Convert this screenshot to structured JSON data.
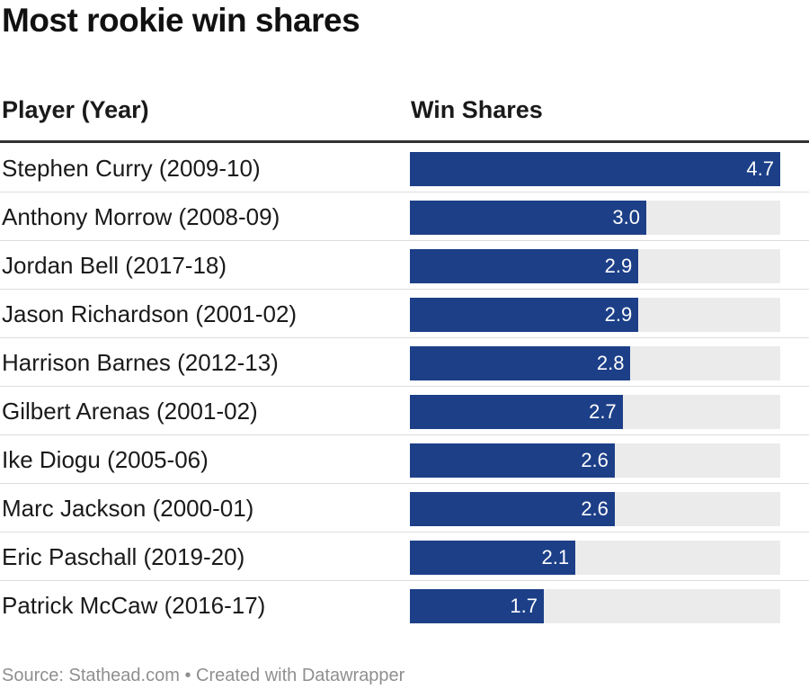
{
  "title": "Most rookie win shares",
  "columns": {
    "player": "Player (Year)",
    "value": "Win Shares"
  },
  "source": "Source: Stathead.com • Created with Datawrapper",
  "colors": {
    "bar": "#1c3f88",
    "track": "#ebebeb",
    "bar_label": "#ffffff"
  },
  "chart_data": {
    "type": "bar",
    "orientation": "horizontal",
    "title": "Most rookie win shares",
    "xlabel": "Win Shares",
    "ylabel": "Player (Year)",
    "xlim": [
      0,
      4.7
    ],
    "categories": [
      "Stephen Curry (2009-10)",
      "Anthony Morrow (2008-09)",
      "Jordan Bell (2017-18)",
      "Jason Richardson (2001-02)",
      "Harrison Barnes (2012-13)",
      "Gilbert Arenas (2001-02)",
      "Ike Diogu (2005-06)",
      "Marc Jackson (2000-01)",
      "Eric Paschall (2019-20)",
      "Patrick McCaw (2016-17)"
    ],
    "values": [
      4.7,
      3.0,
      2.9,
      2.9,
      2.8,
      2.7,
      2.6,
      2.6,
      2.1,
      1.7
    ],
    "value_labels": [
      "4.7",
      "3.0",
      "2.9",
      "2.9",
      "2.8",
      "2.7",
      "2.6",
      "2.6",
      "2.1",
      "1.7"
    ]
  }
}
